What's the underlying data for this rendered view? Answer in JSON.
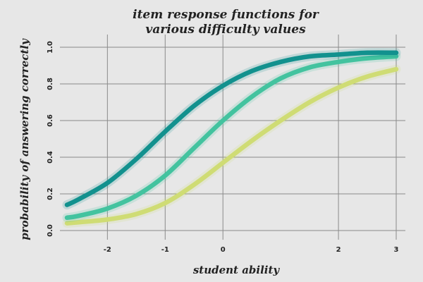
{
  "chart_data": {
    "type": "line",
    "title": [
      "item response functions for",
      "various difficulty values"
    ],
    "xlabel": "student ability",
    "ylabel": "probability of answering correctly",
    "xlim": [
      -2.7,
      3.0
    ],
    "ylim": [
      0.0,
      1.0
    ],
    "x_ticks": [
      "-2",
      "-1",
      "0",
      "2",
      "3"
    ],
    "x_tick_values": [
      -2,
      -1,
      0,
      2,
      3
    ],
    "y_ticks": [
      "0.0",
      "0.2",
      "0.4",
      "0.6",
      "0.8",
      "1.0"
    ],
    "y_tick_values": [
      0.0,
      0.2,
      0.4,
      0.6,
      0.8,
      1.0
    ],
    "grid": true,
    "series": [
      {
        "color": "#12918e",
        "x": [
          -2.7,
          -2.5,
          -2.0,
          -1.5,
          -1.0,
          -0.5,
          0.0,
          0.5,
          1.0,
          1.5,
          2.0,
          2.5,
          3.0
        ],
        "values": [
          0.14,
          0.17,
          0.26,
          0.39,
          0.54,
          0.68,
          0.79,
          0.87,
          0.92,
          0.95,
          0.96,
          0.97,
          0.97
        ]
      },
      {
        "color": "#43c39f",
        "x": [
          -2.7,
          -2.5,
          -2.0,
          -1.5,
          -1.0,
          -0.5,
          0.0,
          0.5,
          1.0,
          1.5,
          2.0,
          2.5,
          3.0
        ],
        "values": [
          0.07,
          0.08,
          0.12,
          0.19,
          0.3,
          0.45,
          0.6,
          0.73,
          0.83,
          0.89,
          0.92,
          0.94,
          0.95
        ]
      },
      {
        "color": "#cfdc74",
        "x": [
          -2.7,
          -2.5,
          -2.0,
          -1.5,
          -1.0,
          -0.5,
          0.0,
          0.5,
          1.0,
          1.5,
          2.0,
          2.5,
          3.0
        ],
        "values": [
          0.04,
          0.045,
          0.06,
          0.09,
          0.15,
          0.25,
          0.37,
          0.49,
          0.6,
          0.7,
          0.78,
          0.84,
          0.88
        ]
      }
    ]
  }
}
